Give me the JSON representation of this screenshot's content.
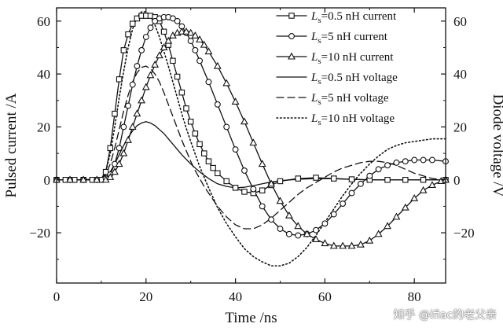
{
  "chart_data": {
    "type": "line",
    "xlabel": "Time /ns",
    "ylabel_left": "Pulsed current /A",
    "ylabel_right": "Diode voltage /V",
    "xlim": [
      0,
      87
    ],
    "ylim_left": [
      -39,
      65
    ],
    "ylim_right": [
      -39,
      65
    ],
    "x_ticks": [
      0,
      20,
      40,
      60,
      80
    ],
    "y_ticks_left": [
      -20,
      0,
      20,
      40,
      60
    ],
    "y_ticks_right": [
      -20,
      0,
      20,
      40,
      60
    ],
    "tick_labels": {
      "x": [
        "0",
        "20",
        "40",
        "60",
        "80"
      ],
      "y_left": [
        "−20",
        "0",
        "20",
        "40",
        "60"
      ],
      "y_right": [
        "−20",
        "0",
        "20",
        "40",
        "60"
      ]
    },
    "legend_position": "top-right",
    "series": [
      {
        "name": "Ls=0.5 nH current",
        "label_sub": "s",
        "label_rest": "=0.5 nH current",
        "axis": "left",
        "line": "solid",
        "marker": "square",
        "x": [
          0,
          2,
          4,
          6,
          8,
          10,
          11,
          12,
          13,
          14,
          15,
          16,
          17,
          18,
          19,
          20,
          21,
          22,
          23,
          24,
          25,
          26,
          27,
          28,
          29,
          30,
          31,
          32,
          33,
          34,
          35,
          36,
          38,
          40,
          42,
          44,
          46,
          48,
          50,
          54,
          58,
          62,
          66,
          70,
          74,
          78,
          82,
          87
        ],
        "y": [
          0,
          0,
          0,
          0,
          0,
          0,
          3,
          12,
          25,
          38,
          49,
          55,
          59,
          61,
          62,
          62,
          62,
          61.5,
          60,
          56,
          51,
          45,
          39,
          33,
          27,
          22,
          17.5,
          13.5,
          10,
          7,
          4.5,
          2.5,
          -0.5,
          -3,
          -4.5,
          -5,
          -4,
          -2,
          -0.5,
          0.5,
          0.8,
          0.5,
          0.2,
          0,
          0,
          0,
          0,
          0
        ]
      },
      {
        "name": "Ls=5 nH current",
        "label_sub": "s",
        "label_rest": "=5 nH current",
        "axis": "left",
        "line": "solid",
        "marker": "circle",
        "x": [
          0,
          3,
          6,
          9,
          11,
          12,
          13,
          14,
          15,
          16,
          17,
          18,
          19,
          20,
          21,
          22,
          23,
          24,
          25,
          26,
          27,
          28,
          29,
          30,
          31,
          32,
          34,
          36,
          38,
          40,
          42,
          44,
          46,
          48,
          50,
          52,
          54,
          56,
          58,
          60,
          62,
          64,
          66,
          68,
          70,
          72,
          74,
          76,
          78,
          80,
          82,
          84,
          87
        ],
        "y": [
          0,
          0,
          0,
          0,
          0.5,
          2,
          6,
          12,
          20,
          28,
          36,
          43,
          49,
          54,
          57.5,
          60,
          61,
          61.5,
          61.5,
          61,
          60,
          58,
          55.5,
          52.5,
          49,
          45,
          37,
          28.5,
          20,
          11.5,
          3.5,
          -3.5,
          -10,
          -15,
          -18.5,
          -20.5,
          -21,
          -20.5,
          -19,
          -16.5,
          -13,
          -9,
          -5,
          -1.5,
          1.5,
          4,
          5.5,
          6.5,
          7,
          7.5,
          7.5,
          7.5,
          7
        ]
      },
      {
        "name": "Ls=10 nH current",
        "label_sub": "s",
        "label_rest": "=10 nH current",
        "axis": "left",
        "line": "solid",
        "marker": "triangle",
        "x": [
          0,
          3,
          6,
          9,
          11,
          12,
          13,
          14,
          15,
          16,
          17,
          18,
          19,
          20,
          21,
          22,
          23,
          24,
          25,
          26,
          27,
          28,
          29,
          30,
          31,
          32,
          33,
          34,
          36,
          38,
          40,
          42,
          44,
          46,
          48,
          50,
          52,
          54,
          56,
          58,
          60,
          62,
          64,
          66,
          68,
          70,
          72,
          74,
          76,
          78,
          80,
          82,
          84,
          86,
          87
        ],
        "y": [
          0,
          0,
          0,
          0,
          0,
          1,
          3,
          6,
          10,
          15,
          20,
          25,
          30,
          35,
          39.5,
          43.5,
          47,
          50,
          52.5,
          54.5,
          55.5,
          56,
          56,
          55.5,
          54.5,
          53,
          51,
          48.5,
          43,
          36.5,
          29.5,
          22,
          14,
          6,
          -1.5,
          -8,
          -13.5,
          -17.5,
          -20.5,
          -22.5,
          -24,
          -25,
          -25,
          -25,
          -24.5,
          -23,
          -20.5,
          -17.5,
          -14,
          -10.5,
          -7,
          -4,
          -2,
          -0.5,
          0
        ]
      },
      {
        "name": "Ls=0.5 nH voltage",
        "label_sub": "s",
        "label_rest": "=0.5 nH voltage",
        "axis": "right",
        "line": "solid",
        "marker": "none",
        "x": [
          0,
          5,
          10,
          11,
          12,
          13,
          14,
          15,
          16,
          17,
          18,
          19,
          20,
          21,
          22,
          23,
          24,
          25,
          26,
          27,
          28,
          30,
          32,
          34,
          36,
          38,
          40,
          42,
          44,
          46,
          48,
          50,
          54,
          58,
          62,
          66,
          70,
          74,
          80,
          87
        ],
        "y": [
          0,
          0,
          0.3,
          1,
          3,
          6,
          9.5,
          13,
          16,
          18.5,
          20.5,
          21.5,
          22,
          21.5,
          20.5,
          19,
          17.5,
          15.5,
          13.5,
          11.5,
          9.5,
          6,
          3,
          0.5,
          -1.5,
          -2.5,
          -3,
          -2.8,
          -2.2,
          -1.5,
          -0.8,
          -0.3,
          0.2,
          0.5,
          0.4,
          0.2,
          0,
          0,
          0,
          0
        ]
      },
      {
        "name": "Ls=5 nH voltage",
        "label_sub": "s",
        "label_rest": "=5 nH voltage",
        "axis": "right",
        "line": "dashed",
        "marker": "none",
        "x": [
          0,
          5,
          10,
          11,
          12,
          13,
          14,
          15,
          16,
          17,
          18,
          19,
          20,
          21,
          22,
          23,
          24,
          25,
          26,
          27,
          28,
          29,
          30,
          31,
          32,
          33,
          34,
          36,
          38,
          40,
          42,
          44,
          46,
          48,
          50,
          52,
          54,
          56,
          58,
          60,
          62,
          64,
          66,
          68,
          70,
          72,
          74,
          76,
          78,
          80,
          84,
          87
        ],
        "y": [
          0,
          0,
          0.3,
          2,
          6,
          12,
          19,
          26,
          32,
          37,
          40.5,
          42.5,
          43,
          42,
          40,
          37,
          33,
          28.5,
          24,
          19.5,
          15,
          11,
          7,
          3.5,
          0.5,
          -2.5,
          -5,
          -10,
          -14,
          -17,
          -18.5,
          -18.5,
          -17,
          -14.5,
          -11.5,
          -8.5,
          -5.5,
          -3,
          -1,
          1,
          3,
          4.5,
          5.5,
          6.5,
          7,
          7,
          6.5,
          5.5,
          4,
          2.5,
          0.5,
          0
        ]
      },
      {
        "name": "Ls=10 nH voltage",
        "label_sub": "s",
        "label_rest": "=10 nH voltage",
        "axis": "right",
        "line": "dotted",
        "marker": "none",
        "x": [
          0,
          5,
          10,
          11,
          12,
          13,
          14,
          15,
          16,
          17,
          18,
          19,
          20,
          21,
          22,
          23,
          24,
          25,
          26,
          27,
          28,
          29,
          30,
          32,
          34,
          36,
          38,
          40,
          42,
          44,
          46,
          48,
          50,
          52,
          54,
          56,
          58,
          60,
          62,
          64,
          66,
          68,
          70,
          72,
          74,
          76,
          78,
          80,
          82,
          84,
          87
        ],
        "y": [
          0,
          0,
          0.5,
          3,
          10,
          20,
          31,
          41,
          50,
          57,
          61.5,
          63.5,
          63.5,
          62,
          58.5,
          54,
          48.5,
          43,
          37,
          31,
          25,
          19.5,
          14.5,
          5,
          -3,
          -10.5,
          -16.5,
          -21.5,
          -26,
          -29,
          -31,
          -32.5,
          -32.5,
          -31.5,
          -29,
          -25.5,
          -21,
          -16,
          -11,
          -6,
          -1.5,
          2.5,
          6,
          9,
          11.5,
          13,
          14,
          14.5,
          15,
          15.5,
          15.5
        ]
      }
    ]
  },
  "watermark": "知乎 @ifiac的老父亲"
}
